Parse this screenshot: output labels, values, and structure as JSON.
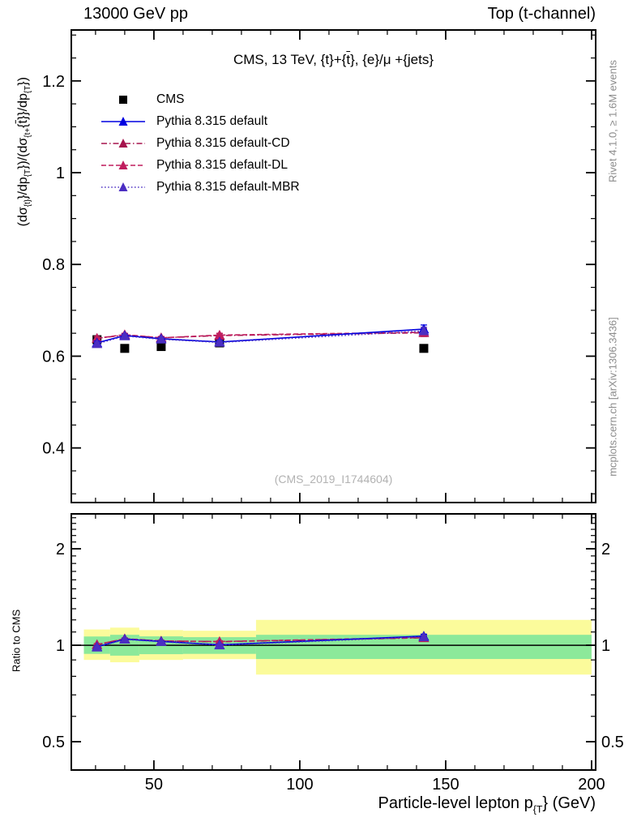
{
  "header": {
    "left": "13000 GeV pp",
    "right": "Top (t-channel)"
  },
  "side_texts": {
    "top_right": "Rivet 4.1.0, ≥ 1.6M events",
    "bottom_right": "mcplots.cern.ch [arXiv:1306.3436]"
  },
  "watermark": "(CMS_2019_I1744604)",
  "chart_data": {
    "type": "line",
    "title_parts": [
      {
        "t": "CMS, 13 TeV, {t}+{"
      },
      {
        "t": "t",
        "ov": true
      },
      {
        "t": "}, {e}/μ +{jets}"
      }
    ],
    "ylabel_parts": [
      {
        "t": "(dσ"
      },
      {
        "t": "{t}",
        "sub": true
      },
      {
        "t": "}/dp"
      },
      {
        "t": "{T",
        "sub": true
      },
      {
        "t": "})/(dσ"
      },
      {
        "t": "{t+",
        "sub": true
      },
      {
        "t": "{"
      },
      {
        "t": "t",
        "ov": true
      },
      {
        "t": "}}/dp"
      },
      {
        "t": "{T",
        "sub": true
      },
      {
        "t": "})"
      }
    ],
    "xlabel_parts": [
      {
        "t": "Particle-level lepton p"
      },
      {
        "t": "{T",
        "sub": true
      },
      {
        "t": "} (GeV)"
      }
    ],
    "ratio_ylabel": "Ratio to CMS",
    "x_axis": {
      "min": 21.7,
      "max": 201.4,
      "major_ticks": [
        50,
        100,
        150,
        200
      ],
      "minor_step": 10
    },
    "y_main_axis": {
      "min": 0.281,
      "max": 1.311,
      "major_ticks": [
        0.4,
        0.6,
        0.8,
        1,
        1.2
      ],
      "minor_step": 0.05
    },
    "y_ratio_axis": {
      "min": 0.408,
      "max": 2.57,
      "scale": "log",
      "major_ticks": [
        0.5,
        1,
        2
      ]
    },
    "bin_edges": [
      26,
      35,
      45,
      60,
      85,
      200
    ],
    "x_points": [
      30.5,
      40,
      52.5,
      72.5,
      142.5
    ],
    "series": [
      {
        "name": "CMS",
        "marker": "square",
        "color": "#000000",
        "line": "none",
        "values": [
          0.636,
          0.617,
          0.621,
          0.629,
          0.617
        ],
        "errors": [
          0,
          0,
          0,
          0,
          0
        ],
        "ratio": [
          1,
          1,
          1,
          1,
          1
        ],
        "ratio_errors": [
          0,
          0,
          0,
          0,
          0
        ]
      },
      {
        "name": "Pythia 8.315 default",
        "marker": "triangle",
        "color": "#0000e0",
        "line": "solid",
        "values": [
          0.629,
          0.645,
          0.638,
          0.631,
          0.659
        ],
        "errors": [
          0.004,
          0.003,
          0.003,
          0.004,
          0.009
        ],
        "ratio": [
          0.989,
          1.045,
          1.028,
          1.003,
          1.068
        ],
        "ratio_errors": [
          0.007,
          0.006,
          0.005,
          0.006,
          0.015
        ]
      },
      {
        "name": "Pythia 8.315 default-CD",
        "marker": "triangle",
        "color": "#a6134d",
        "line": "dashdot",
        "values": [
          0.639,
          0.646,
          0.64,
          0.645,
          0.651
        ],
        "errors": [
          0.004,
          0.003,
          0.003,
          0.004,
          0.008
        ],
        "ratio": [
          1.004,
          1.047,
          1.031,
          1.026,
          1.055
        ],
        "ratio_errors": [
          0.007,
          0.006,
          0.005,
          0.006,
          0.013
        ]
      },
      {
        "name": "Pythia 8.315 default-DL",
        "marker": "triangle",
        "color": "#c01d5e",
        "line": "dashed",
        "values": [
          0.639,
          0.647,
          0.64,
          0.646,
          0.652
        ],
        "errors": [
          0.004,
          0.003,
          0.003,
          0.004,
          0.008
        ],
        "ratio": [
          1.005,
          1.048,
          1.031,
          1.027,
          1.057
        ],
        "ratio_errors": [
          0.007,
          0.006,
          0.005,
          0.006,
          0.013
        ]
      },
      {
        "name": "Pythia 8.315 default-MBR",
        "marker": "triangle",
        "color": "#4b2ec2",
        "line": "dotted",
        "values": [
          0.627,
          0.644,
          0.637,
          0.63,
          0.655
        ],
        "errors": [
          0.004,
          0.003,
          0.003,
          0.004,
          0.008
        ],
        "ratio": [
          0.986,
          1.043,
          1.026,
          1.001,
          1.062
        ],
        "ratio_errors": [
          0.007,
          0.006,
          0.005,
          0.006,
          0.013
        ]
      }
    ],
    "bands": {
      "yellow_color": "#fbfb9b",
      "green_color": "#8ce99a",
      "yellow": [
        [
          0.9,
          1.12
        ],
        [
          0.885,
          1.135
        ],
        [
          0.9,
          1.115
        ],
        [
          0.905,
          1.11
        ],
        [
          0.81,
          1.2
        ]
      ],
      "green": [
        [
          0.94,
          1.065
        ],
        [
          0.928,
          1.078
        ],
        [
          0.938,
          1.066
        ],
        [
          0.94,
          1.06
        ],
        [
          0.906,
          1.078
        ]
      ]
    },
    "legend_position": "top-left",
    "grid": false
  }
}
